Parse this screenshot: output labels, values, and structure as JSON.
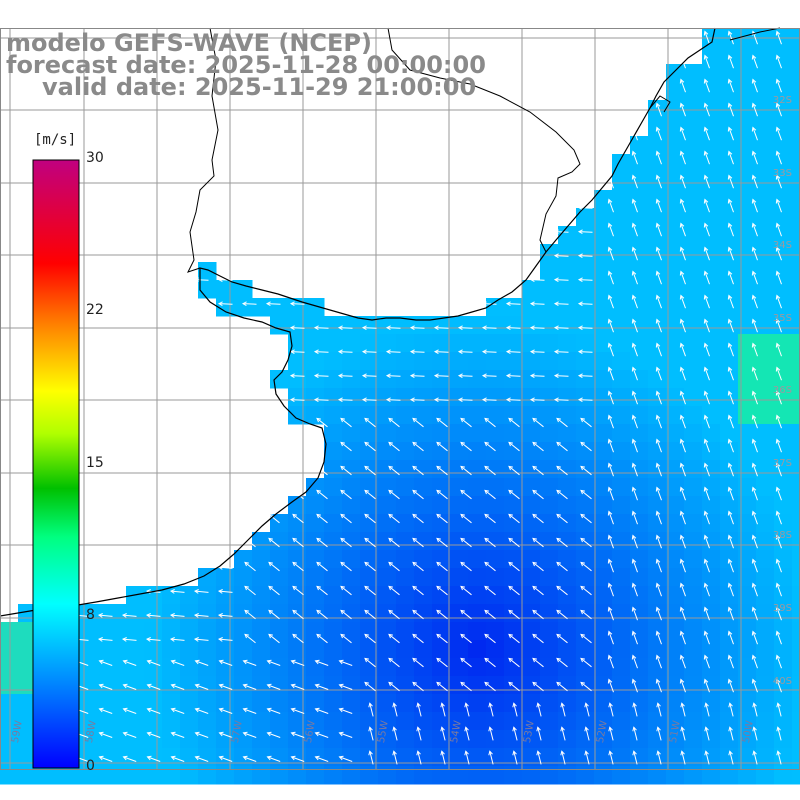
{
  "title": {
    "line1": "modelo GEFS-WAVE (NCEP)",
    "line2": "forecast date: 2025-11-28 00:00:00",
    "line3": "valid date: 2025-11-29 21:00:00"
  },
  "colorbar": {
    "unit": "[m/s]",
    "ticks": [
      "30",
      "22",
      "15",
      "8",
      "0"
    ],
    "tick_values": [
      30,
      22,
      15,
      8,
      0
    ],
    "min": 0,
    "max": 30,
    "colors": [
      "#0000ff",
      "#00c8ff",
      "#00ff80",
      "#00c000",
      "#ffff00",
      "#ff9000",
      "#ff0000",
      "#c00080"
    ]
  },
  "axes": {
    "lat_labels": [
      "32S",
      "33S",
      "34S",
      "35S",
      "36S",
      "37S",
      "38S",
      "39S",
      "40S"
    ],
    "lon_labels": [
      "59W",
      "58W",
      "57W",
      "56W",
      "55W",
      "54W",
      "53W",
      "52W",
      "51W",
      "50W"
    ]
  },
  "colors": {
    "land": "#ffffff",
    "coast": "#000000",
    "grid": "#9a9a9a",
    "vector": "#ffffff"
  }
}
